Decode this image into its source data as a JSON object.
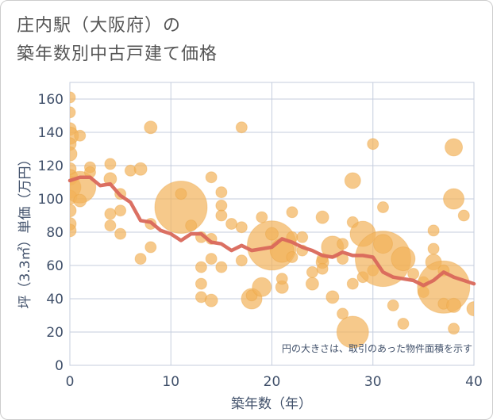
{
  "title": {
    "line1": "庄内駅（大阪府）の",
    "line2": "築年数別中古戸建て価格"
  },
  "chart_data": {
    "type": "scatter",
    "title": "庄内駅（大阪府）の 築年数別中古戸建て価格",
    "xlabel": "築年数（年）",
    "ylabel": "坪（3.3㎡）単価（万円）",
    "xlim": [
      0,
      40
    ],
    "ylim": [
      0,
      170
    ],
    "xticks": [
      "0",
      "10",
      "20",
      "30",
      "40"
    ],
    "yticks": [
      "0",
      "20",
      "40",
      "60",
      "80",
      "100",
      "120",
      "140",
      "160"
    ],
    "annotation": "円の大きさは、取引のあった物件面積を示す",
    "colors": {
      "bubble": "#f2b25a",
      "line": "#d9685b",
      "grid": "#c5cede",
      "axis_text": "#40506a"
    },
    "bubbles": [
      {
        "x": 0,
        "y": 161,
        "s": 7
      },
      {
        "x": 0,
        "y": 152,
        "s": 7
      },
      {
        "x": 0,
        "y": 142,
        "s": 8
      },
      {
        "x": 0,
        "y": 138,
        "s": 11
      },
      {
        "x": 0,
        "y": 133,
        "s": 8
      },
      {
        "x": 0,
        "y": 127,
        "s": 9
      },
      {
        "x": 0,
        "y": 118,
        "s": 8
      },
      {
        "x": 0,
        "y": 113,
        "s": 10
      },
      {
        "x": 0,
        "y": 107,
        "s": 14
      },
      {
        "x": 0,
        "y": 101,
        "s": 9
      },
      {
        "x": 0,
        "y": 93,
        "s": 8
      },
      {
        "x": 0,
        "y": 85,
        "s": 8
      },
      {
        "x": 0,
        "y": 81,
        "s": 8
      },
      {
        "x": 1,
        "y": 138,
        "s": 7
      },
      {
        "x": 1,
        "y": 107,
        "s": 20
      },
      {
        "x": 1,
        "y": 99,
        "s": 8
      },
      {
        "x": 2,
        "y": 119,
        "s": 7
      },
      {
        "x": 2,
        "y": 116,
        "s": 7
      },
      {
        "x": 4,
        "y": 121,
        "s": 7
      },
      {
        "x": 4,
        "y": 112,
        "s": 8
      },
      {
        "x": 4,
        "y": 91,
        "s": 7
      },
      {
        "x": 4,
        "y": 84,
        "s": 7
      },
      {
        "x": 5,
        "y": 103,
        "s": 7
      },
      {
        "x": 5,
        "y": 93,
        "s": 7
      },
      {
        "x": 5,
        "y": 79,
        "s": 7
      },
      {
        "x": 6,
        "y": 117,
        "s": 7
      },
      {
        "x": 7,
        "y": 118,
        "s": 8
      },
      {
        "x": 7,
        "y": 64,
        "s": 7
      },
      {
        "x": 8,
        "y": 143,
        "s": 8
      },
      {
        "x": 8,
        "y": 85,
        "s": 7
      },
      {
        "x": 8,
        "y": 71,
        "s": 7
      },
      {
        "x": 11,
        "y": 95,
        "s": 33
      },
      {
        "x": 11,
        "y": 103,
        "s": 7
      },
      {
        "x": 12,
        "y": 84,
        "s": 7
      },
      {
        "x": 13,
        "y": 77,
        "s": 7
      },
      {
        "x": 13,
        "y": 59,
        "s": 7
      },
      {
        "x": 13,
        "y": 49,
        "s": 7
      },
      {
        "x": 13,
        "y": 41,
        "s": 7
      },
      {
        "x": 14,
        "y": 113,
        "s": 7
      },
      {
        "x": 14,
        "y": 76,
        "s": 7
      },
      {
        "x": 14,
        "y": 64,
        "s": 7
      },
      {
        "x": 14,
        "y": 39,
        "s": 8
      },
      {
        "x": 15,
        "y": 104,
        "s": 7
      },
      {
        "x": 15,
        "y": 96,
        "s": 7
      },
      {
        "x": 15,
        "y": 90,
        "s": 7
      },
      {
        "x": 15,
        "y": 59,
        "s": 7
      },
      {
        "x": 16,
        "y": 85,
        "s": 7
      },
      {
        "x": 17,
        "y": 143,
        "s": 7
      },
      {
        "x": 17,
        "y": 83,
        "s": 7
      },
      {
        "x": 17,
        "y": 63,
        "s": 7
      },
      {
        "x": 18,
        "y": 40,
        "s": 13
      },
      {
        "x": 18,
        "y": 42,
        "s": 7
      },
      {
        "x": 19,
        "y": 89,
        "s": 7
      },
      {
        "x": 19,
        "y": 47,
        "s": 12
      },
      {
        "x": 20,
        "y": 72,
        "s": 31
      },
      {
        "x": 20,
        "y": 79,
        "s": 8
      },
      {
        "x": 21,
        "y": 47,
        "s": 8
      },
      {
        "x": 21,
        "y": 52,
        "s": 7
      },
      {
        "x": 21,
        "y": 69,
        "s": 15
      },
      {
        "x": 22,
        "y": 92,
        "s": 7
      },
      {
        "x": 22,
        "y": 77,
        "s": 7
      },
      {
        "x": 22,
        "y": 65,
        "s": 7
      },
      {
        "x": 23,
        "y": 77,
        "s": 7
      },
      {
        "x": 23,
        "y": 69,
        "s": 7
      },
      {
        "x": 24,
        "y": 49,
        "s": 8
      },
      {
        "x": 24,
        "y": 56,
        "s": 7
      },
      {
        "x": 25,
        "y": 89,
        "s": 8
      },
      {
        "x": 25,
        "y": 64,
        "s": 7
      },
      {
        "x": 25,
        "y": 62,
        "s": 8
      },
      {
        "x": 25,
        "y": 58,
        "s": 7
      },
      {
        "x": 26,
        "y": 71,
        "s": 14
      },
      {
        "x": 26,
        "y": 41,
        "s": 8
      },
      {
        "x": 27,
        "y": 73,
        "s": 7
      },
      {
        "x": 27,
        "y": 64,
        "s": 7
      },
      {
        "x": 27,
        "y": 31,
        "s": 7
      },
      {
        "x": 28,
        "y": 111,
        "s": 10
      },
      {
        "x": 28,
        "y": 86,
        "s": 7
      },
      {
        "x": 28,
        "y": 49,
        "s": 7
      },
      {
        "x": 28,
        "y": 20,
        "s": 20
      },
      {
        "x": 29,
        "y": 79,
        "s": 16
      },
      {
        "x": 29,
        "y": 53,
        "s": 7
      },
      {
        "x": 30,
        "y": 133,
        "s": 7
      },
      {
        "x": 30,
        "y": 57,
        "s": 7
      },
      {
        "x": 31,
        "y": 64,
        "s": 35
      },
      {
        "x": 31,
        "y": 95,
        "s": 7
      },
      {
        "x": 31,
        "y": 73,
        "s": 12
      },
      {
        "x": 32,
        "y": 36,
        "s": 7
      },
      {
        "x": 33,
        "y": 64,
        "s": 15
      },
      {
        "x": 33,
        "y": 25,
        "s": 7
      },
      {
        "x": 34,
        "y": 55,
        "s": 7
      },
      {
        "x": 35,
        "y": 44,
        "s": 7
      },
      {
        "x": 35,
        "y": 50,
        "s": 7
      },
      {
        "x": 36,
        "y": 81,
        "s": 7
      },
      {
        "x": 36,
        "y": 70,
        "s": 7
      },
      {
        "x": 36,
        "y": 62,
        "s": 10
      },
      {
        "x": 37,
        "y": 47,
        "s": 33
      },
      {
        "x": 37,
        "y": 37,
        "s": 7
      },
      {
        "x": 37,
        "y": 57,
        "s": 7
      },
      {
        "x": 38,
        "y": 131,
        "s": 11
      },
      {
        "x": 38,
        "y": 100,
        "s": 13
      },
      {
        "x": 38,
        "y": 36,
        "s": 9
      },
      {
        "x": 38,
        "y": 22,
        "s": 7
      },
      {
        "x": 39,
        "y": 90,
        "s": 7
      },
      {
        "x": 40,
        "y": 34,
        "s": 9
      }
    ],
    "line": {
      "x": [
        0,
        1,
        2,
        3,
        4,
        5,
        6,
        7,
        8,
        9,
        10,
        11,
        12,
        13,
        14,
        15,
        16,
        17,
        18,
        19,
        20,
        21,
        22,
        23,
        24,
        25,
        26,
        27,
        28,
        29,
        30,
        31,
        32,
        33,
        34,
        35,
        36,
        37,
        38,
        39,
        40
      ],
      "y": [
        111,
        113,
        113,
        108,
        109,
        102,
        98,
        87,
        86,
        81,
        79,
        75,
        79,
        79,
        74,
        73,
        69,
        72,
        69,
        70,
        71,
        76,
        74,
        71,
        69,
        66,
        65,
        68,
        66,
        66,
        65,
        56,
        53,
        52,
        51,
        48,
        51,
        56,
        53,
        51,
        49
      ]
    }
  }
}
